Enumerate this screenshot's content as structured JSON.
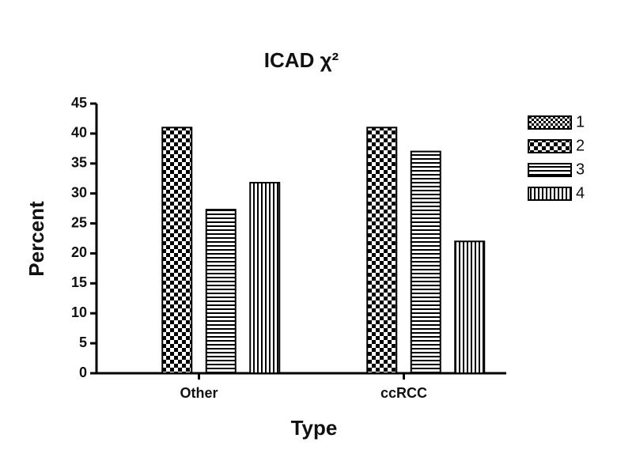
{
  "chart_data": {
    "type": "bar",
    "title": "ICAD χ²",
    "x_label": "Type",
    "y_label": "Percent",
    "categories": [
      "Other",
      "ccRCC"
    ],
    "series": [
      {
        "name": "1",
        "color": "#000000",
        "pattern": "fine-checker",
        "values": [
          0,
          0
        ]
      },
      {
        "name": "2",
        "color": "#000000",
        "pattern": "checker",
        "values": [
          41,
          41
        ]
      },
      {
        "name": "3",
        "color": "#000000",
        "pattern": "horizontal",
        "values": [
          27.3,
          37
        ]
      },
      {
        "name": "4",
        "color": "#000000",
        "pattern": "vertical",
        "values": [
          31.8,
          22
        ]
      }
    ],
    "ylim": [
      0,
      45
    ],
    "yticks": [
      0,
      5,
      10,
      15,
      20,
      25,
      30,
      35,
      40,
      45
    ],
    "grid": false,
    "legend": "right"
  }
}
